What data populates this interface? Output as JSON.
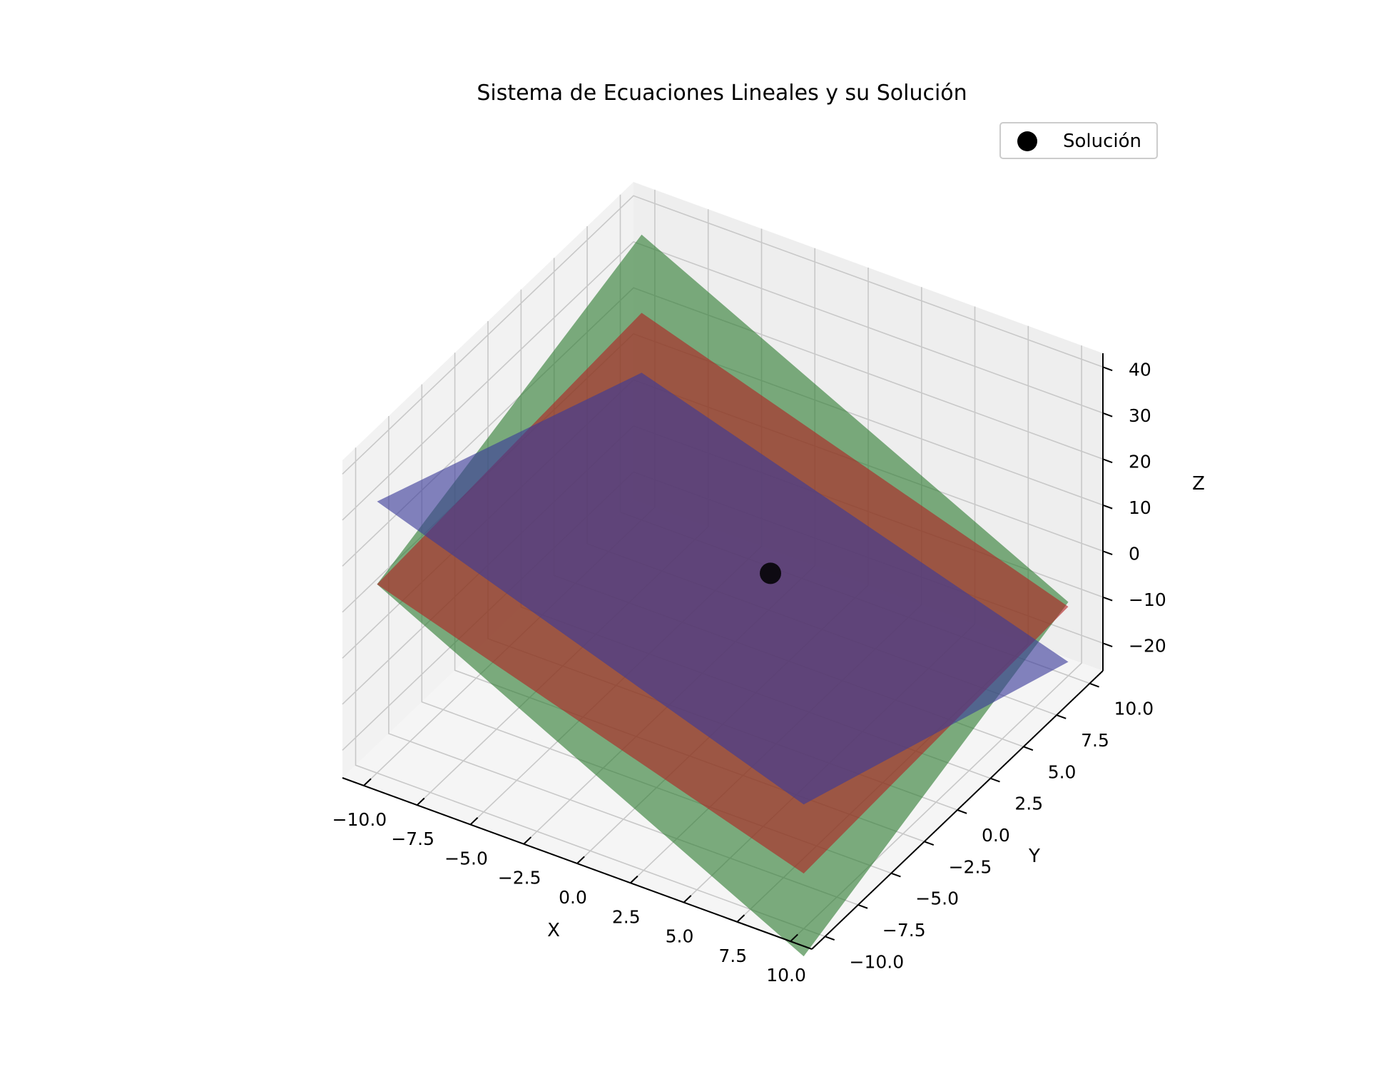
{
  "chart_data": {
    "type": "surface3d",
    "title": "Sistema de Ecuaciones Lineales y su Solución",
    "xlabel": "X",
    "ylabel": "Y",
    "zlabel": "Z",
    "xlim": [
      -11,
      11
    ],
    "ylim": [
      -11,
      11
    ],
    "zlim": [
      -26,
      43
    ],
    "x_ticks": [
      "−10.0",
      "−7.5",
      "−5.0",
      "−2.5",
      "0.0",
      "2.5",
      "5.0",
      "7.5",
      "10.0"
    ],
    "y_ticks": [
      "−10.0",
      "−7.5",
      "−5.0",
      "−2.5",
      "0.0",
      "2.5",
      "5.0",
      "7.5",
      "10.0"
    ],
    "z_ticks": [
      "−20",
      "−10",
      "0",
      "10",
      "20",
      "30",
      "40"
    ],
    "grid": true,
    "legend": {
      "position": "top-right",
      "label": "Solución"
    },
    "planes": [
      {
        "color": "#2e7d32",
        "corners": [
          {
            "x": -10,
            "y": 10,
            "z": 36
          },
          {
            "x": 10,
            "y": 10,
            "z": -10
          },
          {
            "x": 10,
            "y": -10,
            "z": -32
          },
          {
            "x": -10,
            "y": -10,
            "z": 15
          }
        ]
      },
      {
        "color": "#b22222",
        "corners": [
          {
            "x": -10,
            "y": 10,
            "z": 19
          },
          {
            "x": 10,
            "y": 10,
            "z": -11
          },
          {
            "x": 10,
            "y": -10,
            "z": -14
          },
          {
            "x": -10,
            "y": -10,
            "z": 15
          }
        ]
      },
      {
        "color": "#3a3a9a",
        "corners": [
          {
            "x": -10,
            "y": 10,
            "z": 6
          },
          {
            "x": 10,
            "y": 10,
            "z": -23
          },
          {
            "x": 10,
            "y": -10,
            "z": 1
          },
          {
            "x": -10,
            "y": -10,
            "z": 33
          }
        ]
      }
    ],
    "solution": {
      "x": 1,
      "y": 2,
      "z": 3,
      "label": "Solución",
      "color": "#000000"
    }
  }
}
